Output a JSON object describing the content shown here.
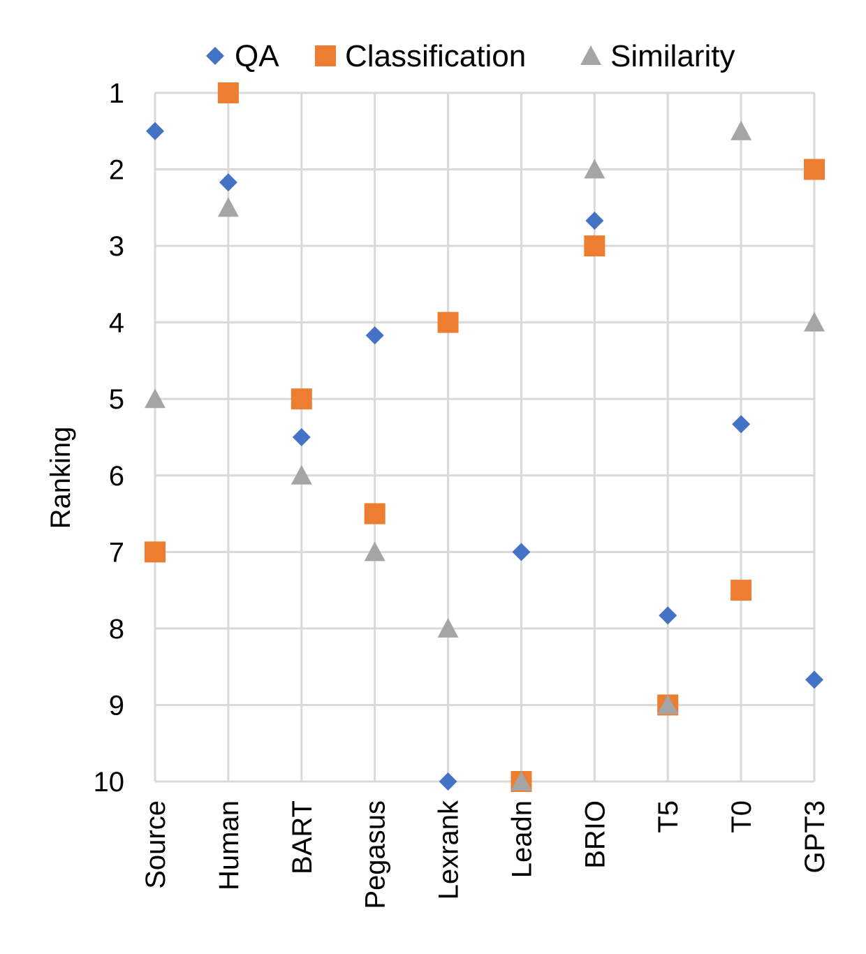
{
  "chart_data": {
    "type": "scatter",
    "categories": [
      "Source",
      "Human",
      "BART",
      "Pegasus",
      "Lexrank",
      "Leadn",
      "BRIO",
      "T5",
      "T0",
      "GPT3"
    ],
    "ylabel": "Ranking",
    "ylim": [
      1,
      10
    ],
    "y_reversed": true,
    "y_ticks": [
      1,
      2,
      3,
      4,
      5,
      6,
      7,
      8,
      9,
      10
    ],
    "grid": true,
    "legend_position": "top",
    "series": [
      {
        "name": "QA",
        "marker": "diamond",
        "color": "#4472C4",
        "values": [
          1.5,
          2.17,
          5.5,
          4.17,
          10,
          7,
          2.67,
          7.83,
          5.33,
          8.67
        ]
      },
      {
        "name": "Classification",
        "marker": "square",
        "color": "#ED7D31",
        "values": [
          7,
          1,
          5,
          6.5,
          4,
          10,
          3,
          9,
          7.5,
          2
        ]
      },
      {
        "name": "Similarity",
        "marker": "triangle",
        "color": "#A5A5A5",
        "values": [
          5,
          2.5,
          6,
          7,
          8,
          10,
          2,
          9,
          1.5,
          4
        ]
      }
    ]
  }
}
